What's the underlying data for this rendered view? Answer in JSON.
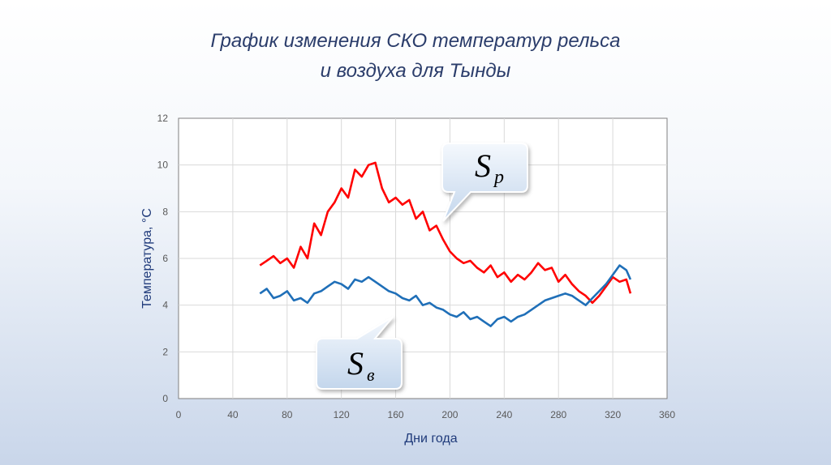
{
  "title_line1": "График изменения СКО температур рельса",
  "title_line2": "и воздуха для Тынды",
  "chart_data": {
    "type": "line",
    "xlabel": "Дни года",
    "ylabel": "Температура, °С",
    "xlim": [
      0,
      360
    ],
    "ylim": [
      0,
      12
    ],
    "x_ticks": [
      "0",
      "40",
      "80",
      "120",
      "160",
      "200",
      "240",
      "280",
      "320",
      "360"
    ],
    "y_ticks": [
      "0",
      "2",
      "4",
      "6",
      "8",
      "10",
      "12"
    ],
    "grid": true,
    "series": [
      {
        "name": "Sp",
        "color": "#ff0000",
        "x": [
          60,
          65,
          70,
          75,
          80,
          85,
          90,
          95,
          100,
          105,
          110,
          115,
          120,
          125,
          130,
          135,
          140,
          145,
          150,
          155,
          160,
          165,
          170,
          175,
          180,
          185,
          190,
          195,
          200,
          205,
          210,
          215,
          220,
          225,
          230,
          235,
          240,
          245,
          250,
          255,
          260,
          265,
          270,
          275,
          280,
          285,
          290,
          295,
          300,
          305,
          310,
          315,
          320,
          325,
          330,
          333
        ],
        "values": [
          5.7,
          5.9,
          6.1,
          5.8,
          6.0,
          5.6,
          6.5,
          6.0,
          7.5,
          7.0,
          8.0,
          8.4,
          9.0,
          8.6,
          9.8,
          9.5,
          10.0,
          10.1,
          9.0,
          8.4,
          8.6,
          8.3,
          8.5,
          7.7,
          8.0,
          7.2,
          7.4,
          6.8,
          6.3,
          6.0,
          5.8,
          5.9,
          5.6,
          5.4,
          5.7,
          5.2,
          5.4,
          5.0,
          5.3,
          5.1,
          5.4,
          5.8,
          5.5,
          5.6,
          5.0,
          5.3,
          4.9,
          4.6,
          4.4,
          4.1,
          4.4,
          4.8,
          5.2,
          5.0,
          5.1,
          4.5
        ]
      },
      {
        "name": "Sв",
        "color": "#1f6fb8",
        "x": [
          60,
          65,
          70,
          75,
          80,
          85,
          90,
          95,
          100,
          105,
          110,
          115,
          120,
          125,
          130,
          135,
          140,
          145,
          150,
          155,
          160,
          165,
          170,
          175,
          180,
          185,
          190,
          195,
          200,
          205,
          210,
          215,
          220,
          225,
          230,
          235,
          240,
          245,
          250,
          255,
          260,
          265,
          270,
          275,
          280,
          285,
          290,
          295,
          300,
          305,
          310,
          315,
          320,
          325,
          330,
          333
        ],
        "values": [
          4.5,
          4.7,
          4.3,
          4.4,
          4.6,
          4.2,
          4.3,
          4.1,
          4.5,
          4.6,
          4.8,
          5.0,
          4.9,
          4.7,
          5.1,
          5.0,
          5.2,
          5.0,
          4.8,
          4.6,
          4.5,
          4.3,
          4.2,
          4.4,
          4.0,
          4.1,
          3.9,
          3.8,
          3.6,
          3.5,
          3.7,
          3.4,
          3.5,
          3.3,
          3.1,
          3.4,
          3.5,
          3.3,
          3.5,
          3.6,
          3.8,
          4.0,
          4.2,
          4.3,
          4.4,
          4.5,
          4.4,
          4.2,
          4.0,
          4.3,
          4.6,
          4.9,
          5.3,
          5.7,
          5.5,
          5.1
        ]
      }
    ],
    "callouts": [
      {
        "series": "Sp",
        "main": "S",
        "sub": "p",
        "at_x": 195,
        "at_y": 7.6
      },
      {
        "series": "Sв",
        "main": "S",
        "sub": "в",
        "at_x": 158,
        "at_y": 3.5
      }
    ]
  }
}
